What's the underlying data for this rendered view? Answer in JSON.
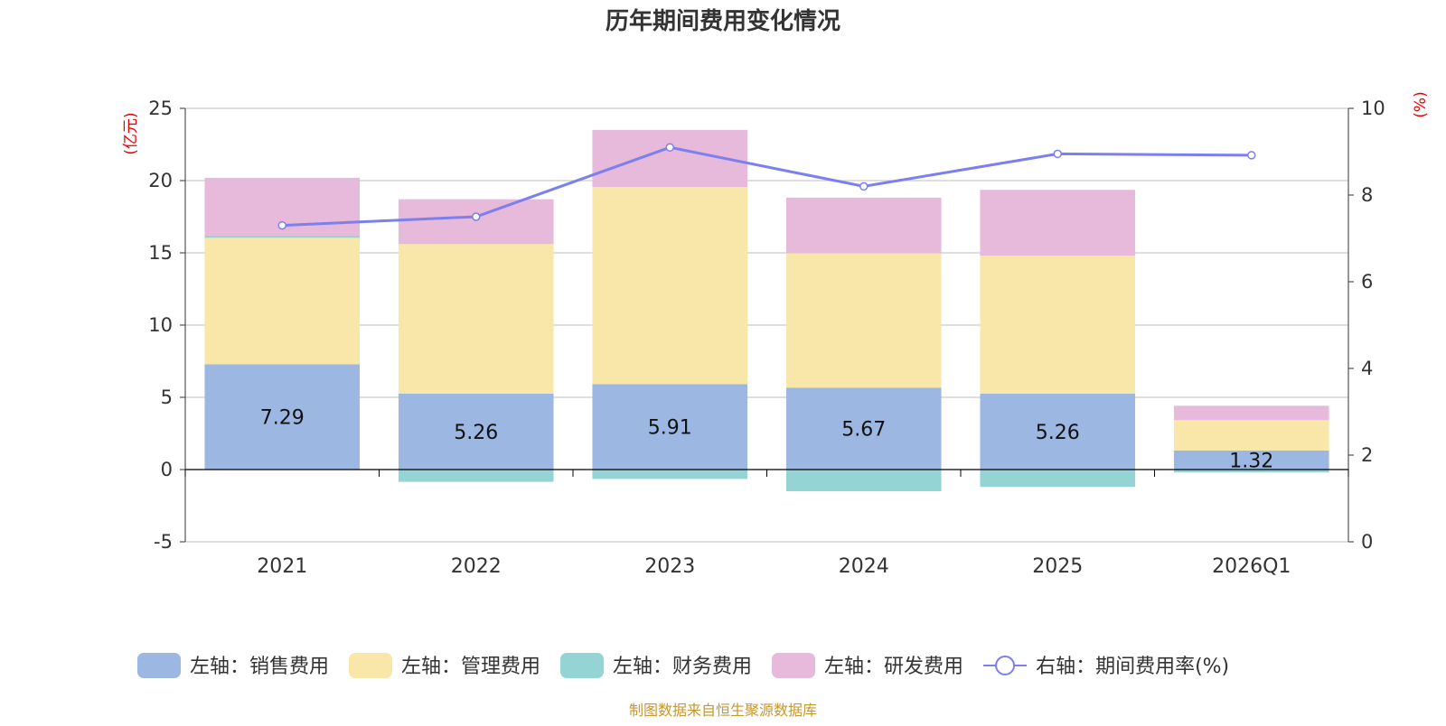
{
  "chart_data": {
    "type": "bar",
    "title": "历年期间费用变化情况",
    "categories": [
      "2021",
      "2022",
      "2023",
      "2024",
      "2025",
      "2026Q1"
    ],
    "y_left": {
      "unit_label": "(亿元)",
      "ylim": [
        -5,
        25
      ],
      "ticks": [
        -5,
        0,
        5,
        10,
        15,
        20,
        25
      ]
    },
    "y_right": {
      "unit_label": "(%)",
      "ylim": [
        0,
        10
      ],
      "ticks": [
        0,
        2,
        4,
        6,
        8,
        10
      ]
    },
    "series": [
      {
        "name": "左轴：销售费用",
        "color": "#9bb7e2",
        "values": [
          7.29,
          5.26,
          5.91,
          5.67,
          5.26,
          1.32
        ],
        "labels": [
          "7.29",
          "5.26",
          "5.91",
          "5.67",
          "5.26",
          "1.32"
        ]
      },
      {
        "name": "左轴：管理费用",
        "color": "#f8e7a8",
        "values": [
          8.75,
          10.35,
          13.65,
          9.3,
          9.55,
          2.1
        ]
      },
      {
        "name": "左轴：财务费用",
        "color": "#95d4d4",
        "values": [
          0.15,
          -0.85,
          -0.65,
          -1.5,
          -1.2,
          -0.2
        ]
      },
      {
        "name": "左轴：研发费用",
        "color": "#e7b9da",
        "values": [
          4.0,
          3.1,
          3.95,
          3.85,
          4.55,
          1.0
        ]
      }
    ],
    "line_series": {
      "name": "右轴：期间费用率(%)",
      "color": "#7b7ff0",
      "values": [
        7.3,
        7.5,
        9.1,
        8.2,
        8.95,
        8.92
      ]
    },
    "grid": true,
    "legend_position": "bottom"
  },
  "source_note": "制图数据来自恒生聚源数据库",
  "colors": {
    "axis_label_red": "#e60000",
    "grid": "#cccccc",
    "axis": "#333333",
    "source": "#c8962d"
  }
}
